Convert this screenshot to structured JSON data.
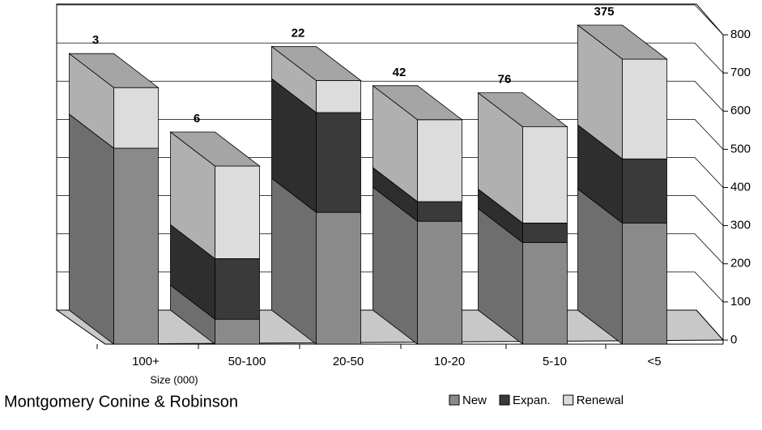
{
  "chart_data": {
    "type": "bar3d_stacked",
    "categories": [
      "100+",
      "50-100",
      "20-50",
      "10-20",
      "5-10",
      "<5"
    ],
    "x_label": "Size (000)",
    "footer": "Montgomery Conine & Robinson",
    "bar_labels": [
      3,
      6,
      22,
      42,
      76,
      375
    ],
    "series": [
      {
        "name": "New",
        "color": "#8a8a8a",
        "values": [
          550,
          70,
          370,
          345,
          285,
          340
        ]
      },
      {
        "name": "Expan.",
        "color": "#3a3a3a",
        "values": [
          0,
          170,
          280,
          55,
          55,
          180
        ]
      },
      {
        "name": "Renewal",
        "color": "#dcdcdc",
        "values": [
          170,
          260,
          90,
          230,
          270,
          280
        ]
      }
    ],
    "ylim": [
      0,
      800
    ],
    "yticks": [
      0,
      100,
      200,
      300,
      400,
      500,
      600,
      700,
      800
    ],
    "grid": true
  }
}
